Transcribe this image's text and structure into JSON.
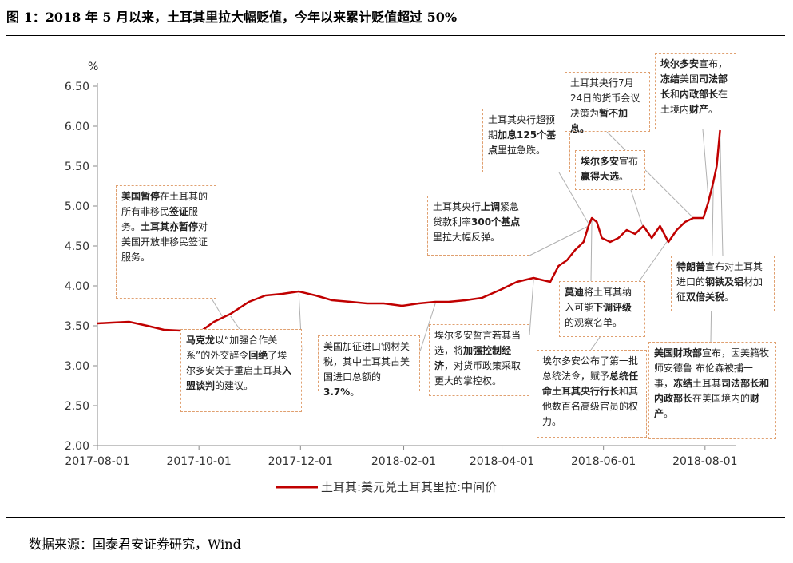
{
  "title": "图 1：2018 年 5 月以来，土耳其里拉大幅贬值，今年以来累计贬值超过 50%",
  "source": "数据来源：国泰君安证券研究，Wind",
  "colors": {
    "line": "#c00000",
    "annotation_border": "#e0a070",
    "leader": "#b0b0b0"
  },
  "chart_data": {
    "type": "line",
    "unit": "%",
    "ylim": [
      2.0,
      6.5
    ],
    "y_ticks": [
      "2.00",
      "2.50",
      "3.00",
      "3.50",
      "4.00",
      "4.50",
      "5.00",
      "5.50",
      "6.00",
      "6.50"
    ],
    "x_ticks": [
      "2017-08-01",
      "2017-10-01",
      "2017-12-01",
      "2018-02-01",
      "2018-04-01",
      "2018-06-01",
      "2018-08-01"
    ],
    "xlim": [
      "2017-08-01",
      "2018-08-15"
    ],
    "grid": false,
    "legend_position": "bottom",
    "series": [
      {
        "name": "土耳其:美元兑土耳其里拉:中间价",
        "x": [
          "2017-08-01",
          "2017-08-10",
          "2017-08-20",
          "2017-08-31",
          "2017-09-10",
          "2017-09-20",
          "2017-09-30",
          "2017-10-10",
          "2017-10-20",
          "2017-10-31",
          "2017-11-10",
          "2017-11-20",
          "2017-11-30",
          "2017-12-10",
          "2017-12-20",
          "2017-12-31",
          "2018-01-10",
          "2018-01-20",
          "2018-01-31",
          "2018-02-10",
          "2018-02-20",
          "2018-02-28",
          "2018-03-10",
          "2018-03-20",
          "2018-03-31",
          "2018-04-10",
          "2018-04-20",
          "2018-04-30",
          "2018-05-05",
          "2018-05-10",
          "2018-05-15",
          "2018-05-20",
          "2018-05-23",
          "2018-05-25",
          "2018-05-28",
          "2018-05-31",
          "2018-06-05",
          "2018-06-10",
          "2018-06-15",
          "2018-06-20",
          "2018-06-25",
          "2018-06-30",
          "2018-07-05",
          "2018-07-10",
          "2018-07-15",
          "2018-07-20",
          "2018-07-25",
          "2018-07-31",
          "2018-08-03",
          "2018-08-06",
          "2018-08-08",
          "2018-08-10"
        ],
        "values": [
          3.53,
          3.54,
          3.55,
          3.5,
          3.45,
          3.44,
          3.4,
          3.55,
          3.65,
          3.8,
          3.88,
          3.9,
          3.93,
          3.88,
          3.82,
          3.8,
          3.78,
          3.78,
          3.75,
          3.78,
          3.8,
          3.8,
          3.82,
          3.85,
          3.95,
          4.05,
          4.1,
          4.05,
          4.25,
          4.32,
          4.45,
          4.55,
          4.75,
          4.85,
          4.8,
          4.6,
          4.55,
          4.6,
          4.7,
          4.65,
          4.75,
          4.6,
          4.75,
          4.55,
          4.7,
          4.8,
          4.85,
          4.85,
          5.05,
          5.3,
          5.5,
          5.95
        ]
      }
    ]
  },
  "annotations": [
    {
      "lines": [
        [
          "美国暂停",
          "b"
        ],
        [
          "在土耳其的",
          ""
        ],
        [
          "所有非移民",
          ""
        ],
        [
          "签证",
          "b"
        ],
        [
          "服",
          ""
        ],
        [
          "务。",
          ""
        ],
        [
          "土耳其亦暂停",
          "b"
        ],
        [
          "对美国",
          ""
        ],
        [
          "开放非移民签证服",
          ""
        ],
        [
          "务。",
          ""
        ]
      ]
    },
    {
      "lines": [
        [
          "马克龙",
          "b"
        ],
        [
          "以“加强合作关系”",
          ""
        ],
        [
          "的外交辞令",
          ""
        ],
        [
          "回绝",
          "b"
        ],
        [
          "了埃尔多",
          ""
        ],
        [
          "安关于重启土耳其",
          ""
        ],
        [
          "入盟谈",
          "b"
        ],
        [
          "判",
          "b"
        ],
        [
          "的建议。",
          ""
        ]
      ]
    },
    {
      "lines": [
        [
          "美国加征进口钢材关",
          ""
        ],
        [
          "税，其中土耳其占美",
          ""
        ],
        [
          "国进口总额的",
          ""
        ],
        [
          "3.7%",
          "b"
        ],
        [
          "。",
          ""
        ]
      ]
    },
    {
      "lines": [
        [
          "埃尔多安誓言若其当",
          ""
        ],
        [
          "选，将",
          ""
        ],
        [
          "加强控制经",
          "b"
        ],
        [
          "济",
          "b"
        ],
        [
          "，对货币政策采取",
          ""
        ],
        [
          "更大的掌控权。",
          ""
        ]
      ]
    },
    {
      "lines": [
        [
          "土耳其央行",
          ""
        ],
        [
          "上调",
          "b"
        ],
        [
          "紧",
          ""
        ],
        [
          "急贷款利率",
          ""
        ],
        [
          "300个基",
          "b"
        ],
        [
          "点",
          "b"
        ],
        [
          "里拉大幅反弹。",
          ""
        ]
      ]
    },
    {
      "lines": [
        [
          "土耳其央行超预",
          ""
        ],
        [
          "期",
          ""
        ],
        [
          "加息125个基",
          "b"
        ],
        [
          "点",
          "b"
        ],
        [
          "里拉急跌。",
          ""
        ]
      ]
    },
    {
      "lines": [
        [
          "土耳其央行7月24",
          ""
        ],
        [
          "日的货币会议决策",
          ""
        ],
        [
          "为",
          ""
        ],
        [
          "暂不加息。",
          "b"
        ]
      ]
    },
    {
      "lines": [
        [
          "埃尔多安",
          "b"
        ],
        [
          "宣布",
          ""
        ],
        [
          "赢得大选",
          "b"
        ],
        [
          "。",
          ""
        ]
      ]
    },
    {
      "lines": [
        [
          "埃尔多安",
          "b"
        ],
        [
          "宣布，",
          ""
        ],
        [
          "冻结",
          "b"
        ],
        [
          "美国",
          ""
        ],
        [
          "司法部",
          "b"
        ],
        [
          "长",
          "b"
        ],
        [
          "和",
          ""
        ],
        [
          "内政部长",
          "b"
        ],
        [
          "在",
          ""
        ],
        [
          "土境内",
          ""
        ],
        [
          "财产",
          "b"
        ],
        [
          "。",
          ""
        ]
      ]
    },
    {
      "lines": [
        [
          "莫迪",
          "b"
        ],
        [
          "将土耳其纳",
          ""
        ],
        [
          "入可能",
          ""
        ],
        [
          "下调评级",
          "b"
        ],
        [
          "的观察名单。",
          ""
        ]
      ]
    },
    {
      "lines": [
        [
          "埃尔多安公布了第一批",
          ""
        ],
        [
          "总统法令，赋予",
          ""
        ],
        [
          "总统任",
          "b"
        ],
        [
          "命土耳其央行行长",
          "b"
        ],
        [
          "和其",
          ""
        ],
        [
          "他数百名高级官员的权",
          ""
        ],
        [
          "力。",
          ""
        ]
      ]
    },
    {
      "lines": [
        [
          "特朗普",
          "b"
        ],
        [
          "宣布对土耳",
          ""
        ],
        [
          "其进口的",
          ""
        ],
        [
          "钢铁及铝",
          "b"
        ],
        [
          "材加征",
          ""
        ],
        [
          "双倍关税",
          "b"
        ],
        [
          "。",
          ""
        ]
      ]
    },
    {
      "lines": [
        [
          "美国财政部",
          "b"
        ],
        [
          "宣布，因",
          ""
        ],
        [
          "美籍牧师安德鲁 布伦",
          ""
        ],
        [
          "森被捕一事，",
          ""
        ],
        [
          "冻结",
          "b"
        ],
        [
          "土",
          ""
        ],
        [
          "耳其",
          ""
        ],
        [
          "司法部长和内政",
          "b"
        ],
        [
          "部长",
          "b"
        ],
        [
          "在美国境内的",
          ""
        ],
        [
          "财产",
          "b"
        ],
        [
          "。",
          ""
        ]
      ]
    }
  ]
}
